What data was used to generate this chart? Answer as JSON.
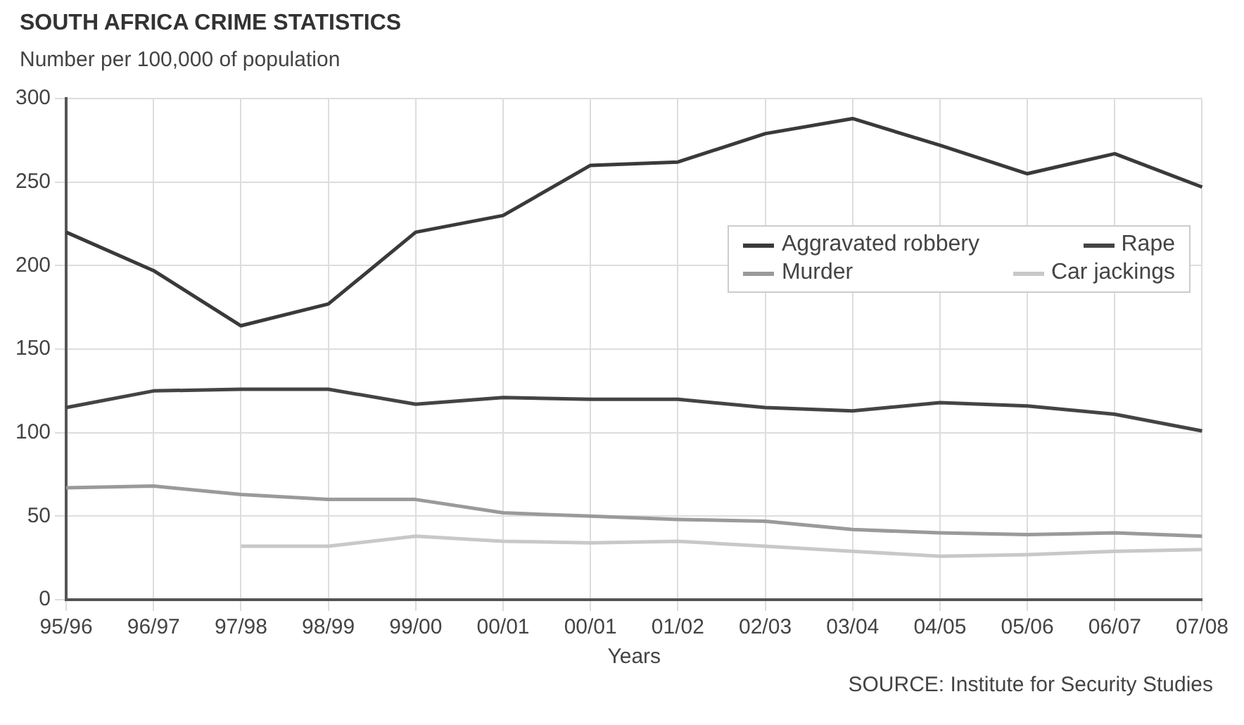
{
  "chart_data": {
    "type": "line",
    "title": "SOUTH AFRICA CRIME STATISTICS",
    "subtitle": "Number per 100,000 of population",
    "xlabel": "Years",
    "annotations": [
      "SOURCE: Institute for Security Studies"
    ],
    "categories": [
      "95/96",
      "96/97",
      "97/98",
      "98/99",
      "99/00",
      "00/01",
      "00/01",
      "01/02",
      "02/03",
      "03/04",
      "04/05",
      "05/06",
      "06/07",
      "07/08"
    ],
    "series": [
      {
        "name": "Aggravated robbery",
        "color": "#3a3a3a",
        "values": [
          220,
          197,
          164,
          177,
          220,
          230,
          260,
          262,
          279,
          288,
          272,
          255,
          267,
          247
        ]
      },
      {
        "name": "Rape",
        "color": "#444444",
        "values": [
          115,
          125,
          126,
          126,
          117,
          121,
          120,
          120,
          115,
          113,
          118,
          116,
          111,
          101
        ]
      },
      {
        "name": "Murder",
        "color": "#9a9a9a",
        "values": [
          67,
          68,
          63,
          60,
          60,
          52,
          50,
          48,
          47,
          42,
          40,
          39,
          40,
          38
        ]
      },
      {
        "name": "Car jackings",
        "color": "#c8c8c8",
        "values": [
          null,
          null,
          32,
          32,
          38,
          35,
          34,
          35,
          32,
          29,
          26,
          27,
          29,
          30
        ]
      }
    ],
    "ylim": [
      0,
      300
    ],
    "yticks": [
      0,
      50,
      100,
      150,
      200,
      250,
      300
    ],
    "grid": true,
    "legend": "top right",
    "marker": "none",
    "line_style": "solid"
  }
}
